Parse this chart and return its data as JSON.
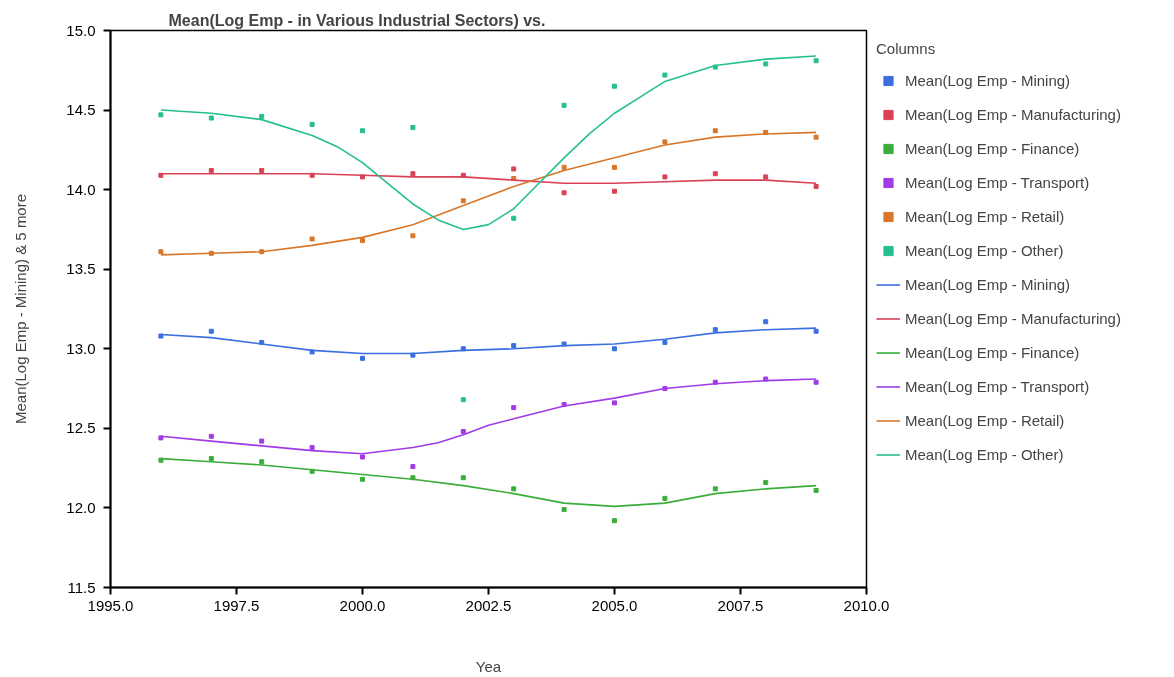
{
  "chart_data": {
    "type": "scatter",
    "title": "Mean(Log Emp - in Various Industrial Sectors) vs.",
    "xlabel": "Yea",
    "ylabel": "Mean(Log Emp - Mining) & 5 more",
    "legend_title": "Columns",
    "legend": "right",
    "grid": false,
    "xlim": [
      1995,
      2010
    ],
    "ylim": [
      11.5,
      15.0
    ],
    "xticks": [
      {
        "value": 1995,
        "label": "1995.0"
      },
      1997.5,
      {
        "value": 2000,
        "label": "2000.0"
      },
      2002.5,
      {
        "value": 2005,
        "label": "2005.0"
      },
      2007.5,
      {
        "value": 2010,
        "label": "2010.0"
      }
    ],
    "yticks": [
      11.5,
      {
        "value": 12,
        "label": "12.0"
      },
      12.5,
      {
        "value": 13,
        "label": "13.0"
      },
      13.5,
      {
        "value": 14,
        "label": "14.0"
      },
      14.5,
      {
        "value": 15,
        "label": "15.0"
      }
    ],
    "x": [
      1996,
      1997,
      1998,
      1999,
      2000,
      2001,
      2002,
      2003,
      2004,
      2005,
      2006,
      2007,
      2008,
      2009
    ],
    "series": [
      {
        "name": "Mean(Log Emp - Mining)",
        "marker": "square",
        "color": "#3b6fe0",
        "values": [
          13.08,
          13.11,
          13.04,
          12.98,
          12.94,
          12.96,
          13.0,
          13.02,
          13.03,
          13.0,
          13.04,
          13.12,
          13.17,
          13.11
        ]
      },
      {
        "name": "Mean(Log Emp - Manufacturing)",
        "marker": "square",
        "color": "#d94255",
        "values": [
          14.09,
          14.12,
          14.12,
          14.09,
          14.08,
          14.1,
          14.09,
          14.13,
          13.98,
          13.99,
          14.08,
          14.1,
          14.08,
          14.02
        ]
      },
      {
        "name": "Mean(Log Emp - Finance)",
        "marker": "square",
        "color": "#3aad3a",
        "values": [
          12.3,
          12.31,
          12.29,
          12.23,
          12.18,
          12.19,
          12.19,
          12.12,
          11.99,
          11.92,
          12.06,
          12.12,
          12.16,
          12.11
        ]
      },
      {
        "name": "Mean(Log Emp - Transport)",
        "marker": "square",
        "color": "#a03be6",
        "values": [
          12.44,
          12.45,
          12.42,
          12.38,
          12.32,
          12.26,
          12.48,
          12.63,
          12.65,
          12.66,
          12.75,
          12.79,
          12.81,
          12.79
        ]
      },
      {
        "name": "Mean(Log Emp - Retail)",
        "marker": "square",
        "color": "#d8772a",
        "values": [
          13.61,
          13.6,
          13.61,
          13.69,
          13.68,
          13.71,
          13.93,
          14.07,
          14.14,
          14.14,
          14.3,
          14.37,
          14.36,
          14.33
        ]
      },
      {
        "name": "Mean(Log Emp - Other)",
        "marker": "square",
        "color": "#25bf8f",
        "values": [
          14.47,
          14.45,
          14.46,
          14.41,
          14.37,
          14.39,
          12.68,
          13.82,
          14.53,
          14.65,
          14.72,
          14.77,
          14.79,
          14.81
        ]
      },
      {
        "name": "Mean(Log Emp - Mining)",
        "type": "line",
        "color": "#3b6fe0",
        "values": [
          13.09,
          13.07,
          13.03,
          12.99,
          12.97,
          12.97,
          12.99,
          13.0,
          13.02,
          13.03,
          13.06,
          13.1,
          13.12,
          13.13
        ]
      },
      {
        "name": "Mean(Log Emp - Manufacturing)",
        "type": "line",
        "color": "#d94255",
        "values": [
          14.1,
          14.1,
          14.1,
          14.1,
          14.09,
          14.08,
          14.08,
          14.06,
          14.04,
          14.04,
          14.05,
          14.06,
          14.06,
          14.04
        ]
      },
      {
        "name": "Mean(Log Emp - Finance)",
        "type": "line",
        "color": "#3aad3a",
        "values": [
          12.31,
          12.29,
          12.27,
          12.24,
          12.21,
          12.18,
          12.14,
          12.09,
          12.03,
          12.01,
          12.03,
          12.09,
          12.12,
          12.14
        ]
      },
      {
        "name": "Mean(Log Emp - Transport)",
        "type": "line",
        "color": "#a03be6",
        "x": [
          1996,
          1997,
          1998,
          1999,
          2000,
          2001,
          2001.5,
          2002,
          2002.5,
          2003,
          2004,
          2005,
          2006,
          2007,
          2008,
          2009
        ],
        "values": [
          12.45,
          12.42,
          12.39,
          12.36,
          12.34,
          12.38,
          12.41,
          12.46,
          12.52,
          12.56,
          12.64,
          12.69,
          12.75,
          12.78,
          12.8,
          12.81
        ]
      },
      {
        "name": "Mean(Log Emp - Retail)",
        "type": "line",
        "color": "#d8772a",
        "values": [
          13.59,
          13.6,
          13.61,
          13.65,
          13.7,
          13.78,
          13.9,
          14.02,
          14.12,
          14.2,
          14.28,
          14.33,
          14.35,
          14.36
        ]
      },
      {
        "name": "Mean(Log Emp - Other)",
        "type": "line",
        "color": "#25bf8f",
        "x": [
          1996,
          1997,
          1998,
          1999,
          1999.5,
          2000,
          2000.5,
          2001,
          2001.5,
          2002,
          2002.5,
          2003,
          2003.5,
          2004,
          2004.5,
          2005,
          2005.5,
          2006,
          2007,
          2008,
          2009
        ],
        "values": [
          14.5,
          14.48,
          14.44,
          14.34,
          14.27,
          14.17,
          14.04,
          13.91,
          13.81,
          13.75,
          13.78,
          13.88,
          14.04,
          14.2,
          14.35,
          14.48,
          14.58,
          14.68,
          14.78,
          14.82,
          14.84
        ]
      }
    ]
  }
}
